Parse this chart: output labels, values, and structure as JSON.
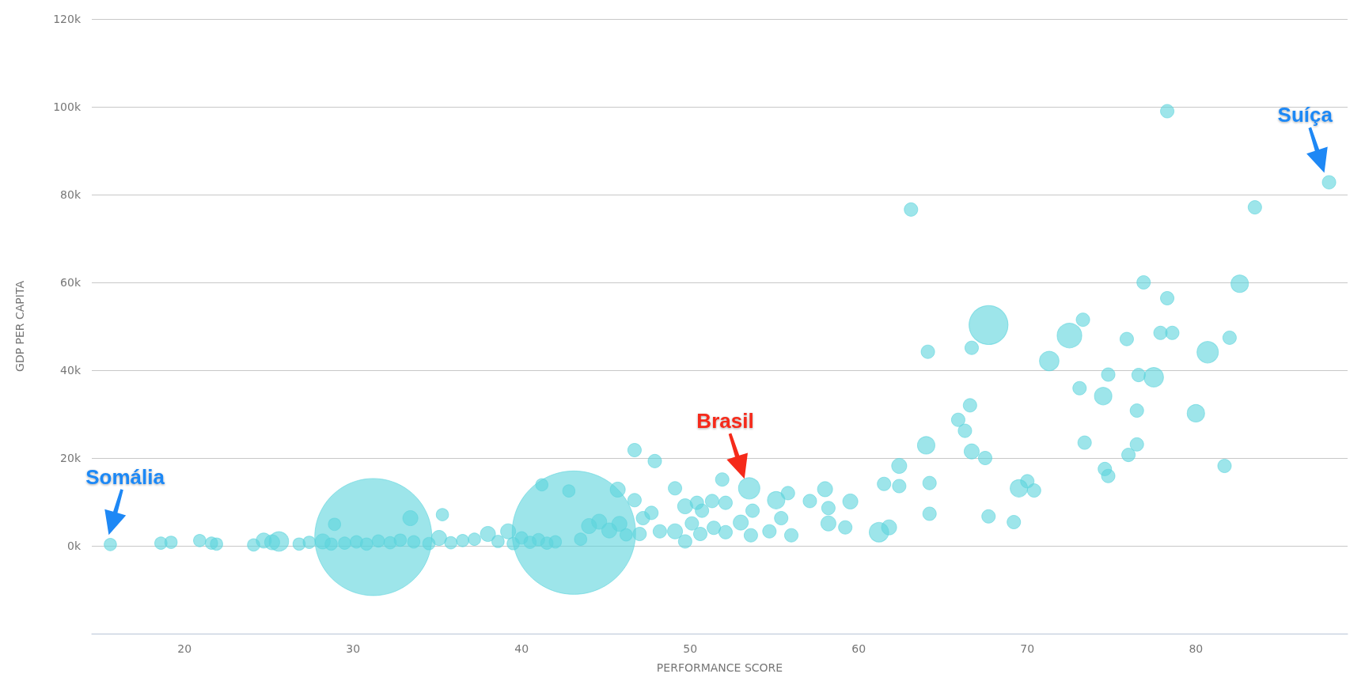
{
  "chart_data": {
    "type": "bubble",
    "xlabel": "PERFORMANCE SCORE",
    "ylabel": "GDP PER CAPITA",
    "color": "#5cd3dc",
    "marker": "circle",
    "grid": "y",
    "xlim": [
      14.5,
      89
    ],
    "xticks": [
      20,
      30,
      40,
      50,
      60,
      70,
      80
    ],
    "ylim": [
      -20000,
      120000
    ],
    "yticks": [
      {
        "value": 0,
        "label": "0k"
      },
      {
        "value": 20000,
        "label": "20k"
      },
      {
        "value": 40000,
        "label": "40k"
      },
      {
        "value": 60000,
        "label": "60k"
      },
      {
        "value": 80000,
        "label": "80k"
      },
      {
        "value": 100000,
        "label": "100k"
      },
      {
        "value": 120000,
        "label": "120k"
      }
    ],
    "x": [
      15.6,
      18.6,
      19.2,
      20.9,
      21.6,
      21.9,
      24.1,
      24.7,
      25.2,
      25.6,
      26.8,
      27.4,
      28.2,
      28.7,
      28.9,
      29.5,
      30.2,
      30.8,
      31.2,
      31.5,
      32.2,
      32.8,
      33.4,
      33.6,
      34.5,
      35.1,
      35.3,
      35.8,
      36.5,
      37.2,
      38.0,
      38.6,
      39.2,
      39.5,
      40.0,
      40.5,
      41.0,
      41.2,
      41.5,
      42.0,
      42.8,
      43.1,
      43.5,
      44.0,
      44.6,
      45.2,
      45.7,
      45.8,
      46.2,
      46.7,
      46.7,
      47.0,
      47.2,
      47.7,
      47.9,
      48.2,
      49.1,
      49.1,
      49.7,
      49.7,
      50.1,
      50.4,
      50.6,
      50.7,
      51.3,
      51.4,
      51.9,
      52.1,
      52.1,
      53.0,
      53.5,
      53.6,
      53.7,
      54.7,
      55.1,
      55.4,
      55.8,
      56.0,
      57.1,
      58.0,
      58.2,
      58.2,
      59.2,
      59.5,
      61.2,
      61.5,
      61.8,
      62.4,
      62.4,
      63.1,
      64.0,
      64.1,
      64.2,
      64.2,
      65.9,
      66.3,
      66.6,
      66.7,
      66.7,
      67.5,
      67.7,
      67.7,
      69.2,
      69.5,
      70.0,
      70.4,
      71.3,
      72.5,
      73.1,
      73.3,
      73.4,
      74.5,
      74.6,
      74.8,
      74.8,
      75.9,
      76.0,
      76.5,
      76.5,
      76.6,
      76.9,
      77.5,
      77.9,
      78.3,
      78.3,
      78.6,
      80.0,
      80.7,
      81.7,
      82.0,
      82.6,
      83.5,
      87.9
    ],
    "values": [
      300,
      600,
      800,
      1200,
      600,
      400,
      200,
      1200,
      800,
      1000,
      400,
      800,
      1000,
      400,
      4900,
      600,
      900,
      400,
      2000,
      1100,
      700,
      1300,
      6300,
      900,
      500,
      1800,
      7100,
      700,
      1200,
      1500,
      2700,
      1000,
      3300,
      500,
      1800,
      800,
      1400,
      13900,
      600,
      900,
      12500,
      3000,
      1500,
      4500,
      5500,
      3500,
      12800,
      5000,
      2500,
      21800,
      10400,
      2700,
      6300,
      7500,
      19300,
      3300,
      13100,
      3300,
      9000,
      1000,
      5100,
      9800,
      2700,
      8000,
      10200,
      4100,
      15100,
      9800,
      3100,
      5300,
      13100,
      2400,
      8000,
      3300,
      10400,
      6300,
      12000,
      2400,
      10200,
      12900,
      8600,
      5100,
      4200,
      10100,
      3100,
      14100,
      4200,
      13600,
      18200,
      76600,
      22900,
      44200,
      14300,
      7300,
      28700,
      26200,
      32000,
      45100,
      21500,
      20000,
      50300,
      6700,
      5400,
      13100,
      14700,
      12600,
      42100,
      47900,
      35900,
      51500,
      23500,
      34100,
      17500,
      39000,
      15900,
      47100,
      20700,
      23100,
      30800,
      38900,
      60000,
      38400,
      48500,
      99000,
      56400,
      48500,
      30200,
      44100,
      18200,
      47400,
      59700,
      77100,
      82800
    ],
    "sizes": [
      0.01,
      0.01,
      0.01,
      0.01,
      0.01,
      0.01,
      0.01,
      0.015,
      0.015,
      0.025,
      0.01,
      0.01,
      0.015,
      0.01,
      0.01,
      0.01,
      0.01,
      0.01,
      0.9,
      0.01,
      0.01,
      0.01,
      0.015,
      0.01,
      0.01,
      0.015,
      0.01,
      0.01,
      0.01,
      0.01,
      0.015,
      0.01,
      0.015,
      0.01,
      0.01,
      0.01,
      0.01,
      0.01,
      0.01,
      0.01,
      0.01,
      1,
      0.01,
      0.015,
      0.015,
      0.015,
      0.015,
      0.015,
      0.01,
      0.012,
      0.012,
      0.012,
      0.012,
      0.012,
      0.012,
      0.012,
      0.012,
      0.015,
      0.015,
      0.012,
      0.012,
      0.012,
      0.012,
      0.012,
      0.012,
      0.012,
      0.012,
      0.012,
      0.012,
      0.015,
      0.03,
      0.012,
      0.012,
      0.012,
      0.02,
      0.012,
      0.012,
      0.012,
      0.012,
      0.015,
      0.012,
      0.015,
      0.012,
      0.015,
      0.025,
      0.012,
      0.015,
      0.012,
      0.015,
      0.012,
      0.02,
      0.012,
      0.012,
      0.012,
      0.012,
      0.012,
      0.012,
      0.012,
      0.015,
      0.012,
      0.1,
      0.012,
      0.012,
      0.02,
      0.012,
      0.012,
      0.025,
      0.04,
      0.012,
      0.012,
      0.012,
      0.02,
      0.012,
      0.012,
      0.012,
      0.012,
      0.012,
      0.012,
      0.012,
      0.012,
      0.012,
      0.025,
      0.012,
      0.012,
      0.012,
      0.012,
      0.02,
      0.03,
      0.012,
      0.012,
      0.02,
      0.012,
      0.012
    ],
    "annotations": [
      {
        "text": "Somália",
        "x": 15.6,
        "y": 300
      },
      {
        "text": "Brasil",
        "x": 53.5,
        "y": 13100
      },
      {
        "text": "Suíça",
        "x": 87.9,
        "y": 82800
      }
    ]
  }
}
